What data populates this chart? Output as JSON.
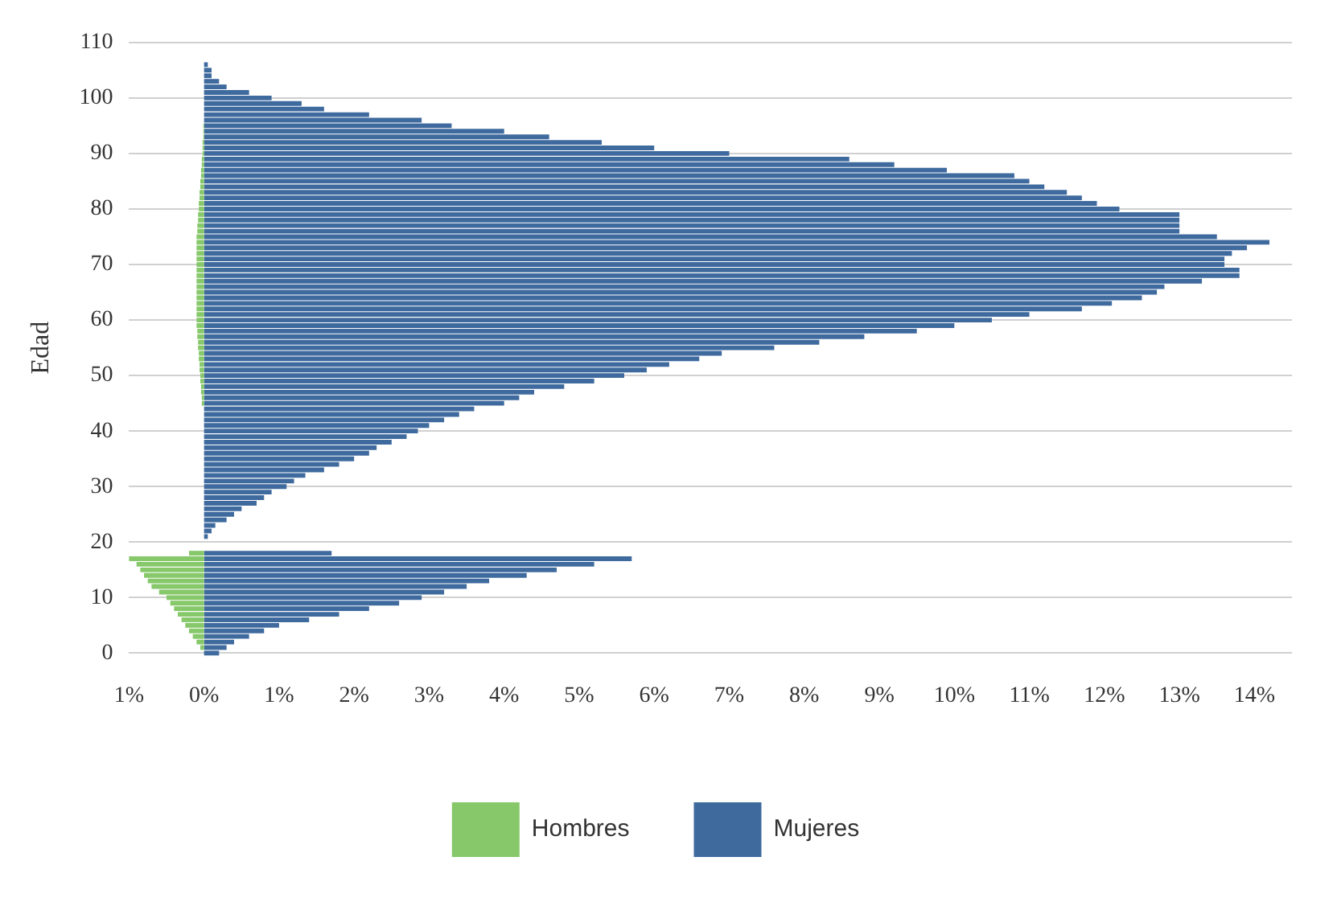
{
  "chart_data": {
    "type": "bar",
    "orientation": "horizontal",
    "stacked": true,
    "ylabel": "Edad",
    "x": [
      0,
      1,
      2,
      3,
      4,
      5,
      6,
      7,
      8,
      9,
      10,
      11,
      12,
      13,
      14,
      15,
      16,
      17,
      18,
      19,
      20,
      21,
      22,
      23,
      24,
      25,
      26,
      27,
      28,
      29,
      30,
      31,
      32,
      33,
      34,
      35,
      36,
      37,
      38,
      39,
      40,
      41,
      42,
      43,
      44,
      45,
      46,
      47,
      48,
      49,
      50,
      51,
      52,
      53,
      54,
      55,
      56,
      57,
      58,
      59,
      60,
      61,
      62,
      63,
      64,
      65,
      66,
      67,
      68,
      69,
      70,
      71,
      72,
      73,
      74,
      75,
      76,
      77,
      78,
      79,
      80,
      81,
      82,
      83,
      84,
      85,
      86,
      87,
      88,
      89,
      90,
      91,
      92,
      93,
      94,
      95,
      96,
      97,
      98,
      99,
      100,
      101,
      102,
      103,
      104,
      105,
      106
    ],
    "series": [
      {
        "name": "Hombres",
        "color": "#86c86a",
        "values": [
          0,
          -0.05,
          -0.1,
          -0.15,
          -0.2,
          -0.25,
          -0.3,
          -0.35,
          -0.4,
          -0.45,
          -0.5,
          -0.6,
          -0.7,
          -0.75,
          -0.8,
          -0.85,
          -0.9,
          -1.0,
          -0.2,
          0,
          0,
          0,
          0,
          0,
          0,
          0,
          0,
          0,
          0,
          0,
          0,
          0,
          0,
          0,
          0,
          0,
          0,
          0,
          0,
          0,
          0,
          0,
          0,
          0,
          0,
          -0.03,
          -0.03,
          -0.04,
          -0.04,
          -0.05,
          -0.05,
          -0.06,
          -0.06,
          -0.07,
          -0.07,
          -0.08,
          -0.08,
          -0.09,
          -0.09,
          -0.1,
          -0.1,
          -0.1,
          -0.1,
          -0.1,
          -0.1,
          -0.1,
          -0.1,
          -0.1,
          -0.1,
          -0.1,
          -0.1,
          -0.1,
          -0.1,
          -0.1,
          -0.1,
          -0.1,
          -0.09,
          -0.09,
          -0.08,
          -0.08,
          -0.07,
          -0.07,
          -0.06,
          -0.06,
          -0.05,
          -0.05,
          -0.04,
          -0.04,
          -0.03,
          -0.03,
          -0.02,
          -0.02,
          -0.02,
          -0.01,
          -0.01,
          -0.01,
          0,
          0,
          0,
          0,
          0,
          0,
          0,
          0,
          0,
          0,
          0
        ]
      },
      {
        "name": "Mujeres",
        "color": "#3f6a9e",
        "values": [
          0.2,
          0.3,
          0.4,
          0.6,
          0.8,
          1.0,
          1.4,
          1.8,
          2.2,
          2.6,
          2.9,
          3.2,
          3.5,
          3.8,
          4.3,
          4.7,
          5.2,
          5.7,
          1.7,
          0,
          0,
          0.05,
          0.1,
          0.15,
          0.3,
          0.4,
          0.5,
          0.7,
          0.8,
          0.9,
          1.1,
          1.2,
          1.35,
          1.6,
          1.8,
          2.0,
          2.2,
          2.3,
          2.5,
          2.7,
          2.85,
          3.0,
          3.2,
          3.4,
          3.6,
          4.0,
          4.2,
          4.4,
          4.8,
          5.2,
          5.6,
          5.9,
          6.2,
          6.6,
          6.9,
          7.6,
          8.2,
          8.8,
          9.5,
          10.0,
          10.5,
          11.0,
          11.7,
          12.1,
          12.5,
          12.7,
          12.8,
          13.3,
          13.8,
          13.8,
          13.6,
          13.6,
          13.7,
          13.9,
          14.2,
          13.5,
          13.0,
          13.0,
          13.0,
          13.0,
          12.2,
          11.9,
          11.7,
          11.5,
          11.2,
          11.0,
          10.8,
          9.9,
          9.2,
          8.6,
          7.0,
          6.0,
          5.3,
          4.6,
          4.0,
          3.3,
          2.9,
          2.2,
          1.6,
          1.3,
          0.9,
          0.6,
          0.3,
          0.2,
          0.1,
          0.1,
          0.05
        ]
      }
    ],
    "xlim": [
      -1,
      14.5
    ],
    "xticks": [
      {
        "value": -1,
        "label": "1%"
      },
      {
        "value": 0,
        "label": "0%"
      },
      {
        "value": 1,
        "label": "1%"
      },
      {
        "value": 2,
        "label": "2%"
      },
      {
        "value": 3,
        "label": "3%"
      },
      {
        "value": 4,
        "label": "4%"
      },
      {
        "value": 5,
        "label": "5%"
      },
      {
        "value": 6,
        "label": "6%"
      },
      {
        "value": 7,
        "label": "7%"
      },
      {
        "value": 8,
        "label": "8%"
      },
      {
        "value": 9,
        "label": "9%"
      },
      {
        "value": 10,
        "label": "10%"
      },
      {
        "value": 11,
        "label": "11%"
      },
      {
        "value": 12,
        "label": "12%"
      },
      {
        "value": 13,
        "label": "13%"
      },
      {
        "value": 14,
        "label": "14%"
      }
    ],
    "ylim": [
      0,
      110
    ],
    "yticks": [
      0,
      10,
      20,
      30,
      40,
      50,
      60,
      70,
      80,
      90,
      100,
      110
    ],
    "grid": "y",
    "legend": "bottom"
  }
}
